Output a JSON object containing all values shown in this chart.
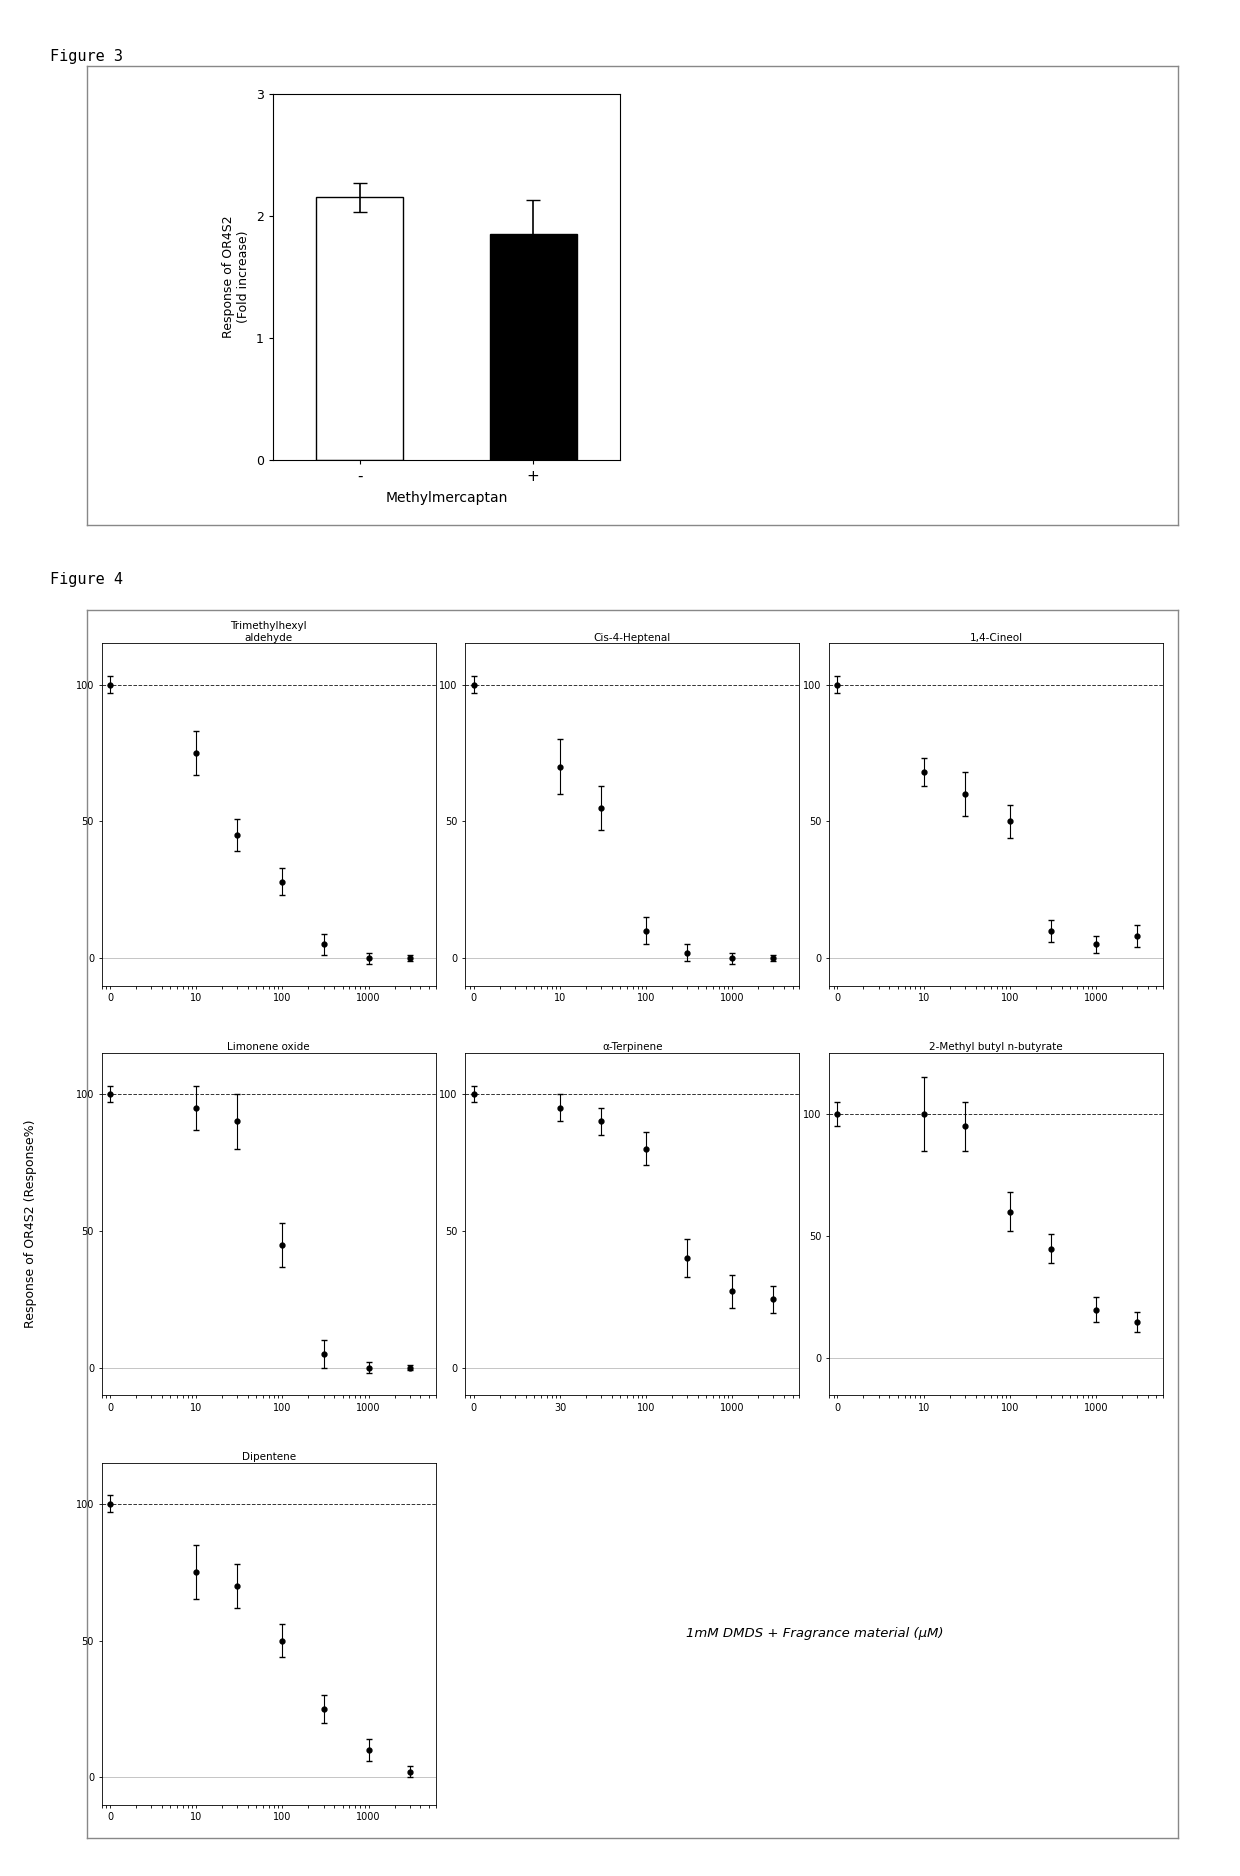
{
  "fig3_title": "Figure 3",
  "fig4_title": "Figure 4",
  "fig3_ylabel": "Response of OR4S2\n(Fold increase)",
  "fig3_xlabel": "Methylmercaptan",
  "fig3_categories": [
    "-",
    "+"
  ],
  "fig3_values": [
    2.15,
    1.85
  ],
  "fig3_errors": [
    0.12,
    0.28
  ],
  "fig3_colors": [
    "white",
    "black"
  ],
  "fig3_ylim": [
    0,
    3
  ],
  "fig3_yticks": [
    0,
    1,
    2,
    3
  ],
  "fig4_ylabel": "Response of OR4S2 (Response%)",
  "fig4_annotation": "1mM DMDS + Fragrance material (μM)",
  "subplots": [
    {
      "title": "Trimethylhexyl\naldehyde",
      "x": [
        1,
        10,
        30,
        100,
        300,
        1000,
        3000
      ],
      "y": [
        100,
        75,
        45,
        28,
        5,
        0,
        0
      ],
      "yerr": [
        3,
        8,
        6,
        5,
        4,
        2,
        1
      ],
      "ylim": [
        -10,
        115
      ],
      "yticks": [
        0,
        50,
        100
      ],
      "xtick_labels": [
        "0",
        "10",
        "100",
        "1000"
      ]
    },
    {
      "title": "Cis-4-Heptenal",
      "x": [
        1,
        10,
        30,
        100,
        300,
        1000,
        3000
      ],
      "y": [
        100,
        70,
        55,
        10,
        2,
        0,
        0
      ],
      "yerr": [
        3,
        10,
        8,
        5,
        3,
        2,
        1
      ],
      "ylim": [
        -10,
        115
      ],
      "yticks": [
        0,
        50,
        100
      ],
      "xtick_labels": [
        "0",
        "10",
        "100",
        "1000"
      ]
    },
    {
      "title": "1,4-Cineol",
      "x": [
        1,
        10,
        30,
        100,
        300,
        1000,
        3000
      ],
      "y": [
        100,
        68,
        60,
        50,
        10,
        5,
        8
      ],
      "yerr": [
        3,
        5,
        8,
        6,
        4,
        3,
        4
      ],
      "ylim": [
        -10,
        115
      ],
      "yticks": [
        0,
        50,
        100
      ],
      "xtick_labels": [
        "0",
        "10",
        "100",
        "1000"
      ]
    },
    {
      "title": "Limonene oxide",
      "x": [
        1,
        10,
        30,
        100,
        300,
        1000,
        3000
      ],
      "y": [
        100,
        95,
        90,
        45,
        5,
        0,
        0
      ],
      "yerr": [
        3,
        8,
        10,
        8,
        5,
        2,
        1
      ],
      "ylim": [
        -10,
        115
      ],
      "yticks": [
        0,
        50,
        100
      ],
      "xtick_labels": [
        "0",
        "10",
        "100",
        "1000"
      ]
    },
    {
      "title": "α-Terpinene",
      "x": [
        1,
        10,
        30,
        100,
        300,
        1000,
        3000
      ],
      "y": [
        100,
        95,
        90,
        80,
        40,
        28,
        25
      ],
      "yerr": [
        3,
        5,
        5,
        6,
        7,
        6,
        5
      ],
      "ylim": [
        -10,
        115
      ],
      "yticks": [
        0,
        50,
        100
      ],
      "xtick_labels": [
        "0",
        "30",
        "100",
        "1000"
      ]
    },
    {
      "title": "2-Methyl butyl n-butyrate",
      "x": [
        1,
        10,
        30,
        100,
        300,
        1000,
        3000
      ],
      "y": [
        100,
        100,
        95,
        60,
        45,
        20,
        15
      ],
      "yerr": [
        5,
        15,
        10,
        8,
        6,
        5,
        4
      ],
      "ylim": [
        -15,
        125
      ],
      "yticks": [
        0,
        50,
        100
      ],
      "xtick_labels": [
        "0",
        "10",
        "100",
        "1000"
      ]
    },
    {
      "title": "Dipentene",
      "x": [
        1,
        10,
        30,
        100,
        300,
        1000,
        3000
      ],
      "y": [
        100,
        75,
        70,
        50,
        25,
        10,
        2
      ],
      "yerr": [
        3,
        10,
        8,
        6,
        5,
        4,
        2
      ],
      "ylim": [
        -10,
        115
      ],
      "yticks": [
        0,
        50,
        100
      ],
      "xtick_labels": [
        "0",
        "10",
        "100",
        "1000"
      ]
    }
  ]
}
